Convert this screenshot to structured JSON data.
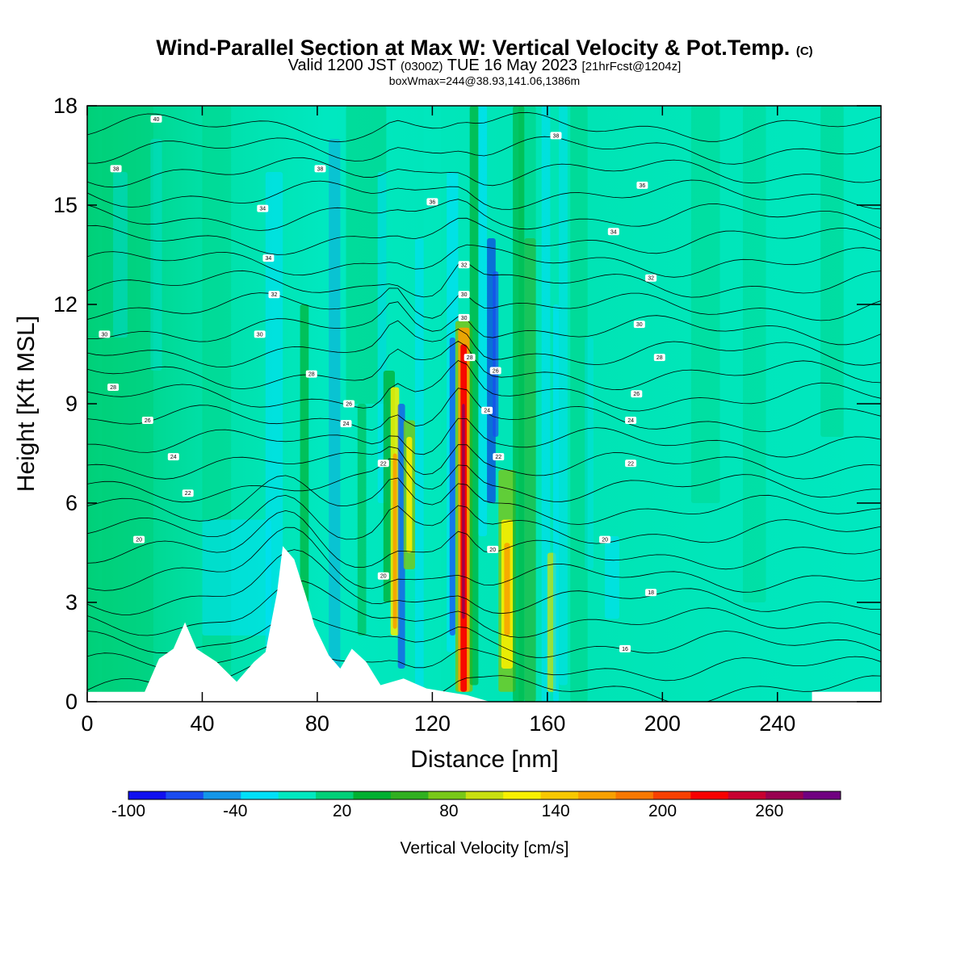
{
  "header": {
    "title": "Wind-Parallel Section at Max W: Vertical Velocity & Pot.Temp.",
    "copyright": "(C)",
    "valid_prefix": "Valid 1200 JST",
    "valid_utc": "(0300Z)",
    "valid_date": "TUE 16 May 2023",
    "forecast": "[21hrFcst@1204z]",
    "box_info": "boxWmax=244@38.93,141.06,1386m"
  },
  "chart_data": {
    "type": "heatmap",
    "xlabel": "Distance [nm]",
    "ylabel": "Height [Kft MSL]",
    "xlim": [
      0,
      276
    ],
    "ylim": [
      0,
      18
    ],
    "x_ticks": [
      "0",
      "40",
      "80",
      "120",
      "160",
      "200",
      "240"
    ],
    "y_ticks": [
      "0",
      "3",
      "6",
      "9",
      "12",
      "15",
      "18"
    ],
    "colorbar": {
      "title": "Vertical Velocity [cm/s]",
      "labels": [
        "-100",
        "-40",
        "20",
        "80",
        "140",
        "200",
        "260"
      ],
      "colors": [
        "#1010f0",
        "#1a4cf0",
        "#1496e8",
        "#00e0f8",
        "#00e8c0",
        "#00d078",
        "#00b030",
        "#30b020",
        "#78c818",
        "#c8e010",
        "#f8f000",
        "#f8c800",
        "#f8a000",
        "#f87800",
        "#f84000",
        "#f80000",
        "#c80030",
        "#980050",
        "#700080"
      ]
    },
    "terrain_profile_nm": [
      [
        20,
        0.3
      ],
      [
        25,
        1.3
      ],
      [
        30,
        1.6
      ],
      [
        34,
        2.4
      ],
      [
        38,
        1.6
      ],
      [
        45,
        1.2
      ],
      [
        52,
        0.6
      ],
      [
        58,
        1.2
      ],
      [
        62,
        1.5
      ],
      [
        66,
        3.3
      ],
      [
        68,
        4.7
      ],
      [
        72,
        4.3
      ],
      [
        76,
        3.2
      ],
      [
        79,
        2.3
      ],
      [
        84,
        1.4
      ],
      [
        88,
        1.0
      ],
      [
        92,
        1.6
      ],
      [
        97,
        1.2
      ],
      [
        102,
        0.5
      ],
      [
        110,
        0.7
      ],
      [
        118,
        0.4
      ],
      [
        125,
        0.3
      ],
      [
        132,
        0.2
      ],
      [
        140,
        0.0
      ]
    ],
    "theta_labels": [
      {
        "x": 24,
        "y": 17.6,
        "text": "40"
      },
      {
        "x": 10,
        "y": 16.1,
        "text": "38"
      },
      {
        "x": 81,
        "y": 16.1,
        "text": "38"
      },
      {
        "x": 163,
        "y": 17.1,
        "text": "38"
      },
      {
        "x": 120,
        "y": 15.1,
        "text": "36"
      },
      {
        "x": 193,
        "y": 15.6,
        "text": "36"
      },
      {
        "x": 61,
        "y": 14.9,
        "text": "34"
      },
      {
        "x": 63,
        "y": 13.4,
        "text": "34"
      },
      {
        "x": 183,
        "y": 14.2,
        "text": "34"
      },
      {
        "x": 131,
        "y": 13.2,
        "text": "32"
      },
      {
        "x": 65,
        "y": 12.3,
        "text": "32"
      },
      {
        "x": 196,
        "y": 12.8,
        "text": "32"
      },
      {
        "x": 131,
        "y": 12.3,
        "text": "30"
      },
      {
        "x": 131,
        "y": 11.6,
        "text": "30"
      },
      {
        "x": 6,
        "y": 11.1,
        "text": "30"
      },
      {
        "x": 60,
        "y": 11.1,
        "text": "30"
      },
      {
        "x": 192,
        "y": 11.4,
        "text": "30"
      },
      {
        "x": 133,
        "y": 10.4,
        "text": "28"
      },
      {
        "x": 9,
        "y": 9.5,
        "text": "28"
      },
      {
        "x": 78,
        "y": 9.9,
        "text": "28"
      },
      {
        "x": 199,
        "y": 10.4,
        "text": "28"
      },
      {
        "x": 142,
        "y": 10.0,
        "text": "26"
      },
      {
        "x": 21,
        "y": 8.5,
        "text": "26"
      },
      {
        "x": 91,
        "y": 9.0,
        "text": "26"
      },
      {
        "x": 191,
        "y": 9.3,
        "text": "26"
      },
      {
        "x": 139,
        "y": 8.8,
        "text": "24"
      },
      {
        "x": 90,
        "y": 8.4,
        "text": "24"
      },
      {
        "x": 30,
        "y": 7.4,
        "text": "24"
      },
      {
        "x": 189,
        "y": 8.5,
        "text": "24"
      },
      {
        "x": 143,
        "y": 7.4,
        "text": "22"
      },
      {
        "x": 103,
        "y": 7.2,
        "text": "22"
      },
      {
        "x": 35,
        "y": 6.3,
        "text": "22"
      },
      {
        "x": 189,
        "y": 7.2,
        "text": "22"
      },
      {
        "x": 18,
        "y": 4.9,
        "text": "20"
      },
      {
        "x": 141,
        "y": 4.6,
        "text": "20"
      },
      {
        "x": 103,
        "y": 3.8,
        "text": "20"
      },
      {
        "x": 180,
        "y": 4.9,
        "text": "20"
      },
      {
        "x": 196,
        "y": 3.3,
        "text": "18"
      },
      {
        "x": 187,
        "y": 1.6,
        "text": "16"
      }
    ]
  }
}
